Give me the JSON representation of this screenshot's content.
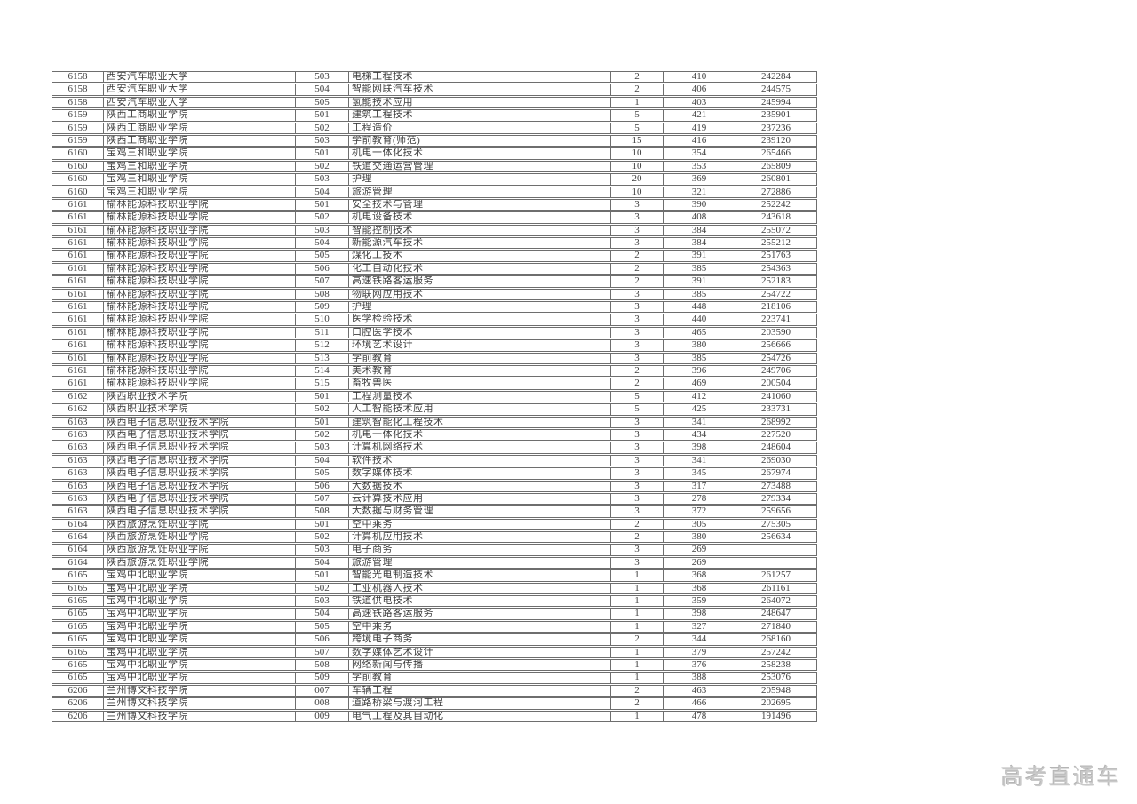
{
  "table": {
    "column_keys": [
      "school_code",
      "school_name",
      "major_code",
      "major_name",
      "plan_count",
      "score",
      "rank"
    ],
    "rows": [
      [
        "6158",
        "西安汽车职业大学",
        "503",
        "电梯工程技术",
        "2",
        "410",
        "242284"
      ],
      [
        "6158",
        "西安汽车职业大学",
        "504",
        "智能网联汽车技术",
        "2",
        "406",
        "244575"
      ],
      [
        "6158",
        "西安汽车职业大学",
        "505",
        "氢能技术应用",
        "1",
        "403",
        "245994"
      ],
      [
        "6159",
        "陕西工商职业学院",
        "501",
        "建筑工程技术",
        "5",
        "421",
        "235901"
      ],
      [
        "6159",
        "陕西工商职业学院",
        "502",
        "工程造价",
        "5",
        "419",
        "237236"
      ],
      [
        "6159",
        "陕西工商职业学院",
        "503",
        "学前教育(师范)",
        "15",
        "416",
        "239120"
      ],
      [
        "6160",
        "宝鸡三和职业学院",
        "501",
        "机电一体化技术",
        "10",
        "354",
        "265466"
      ],
      [
        "6160",
        "宝鸡三和职业学院",
        "502",
        "铁道交通运营管理",
        "10",
        "353",
        "265809"
      ],
      [
        "6160",
        "宝鸡三和职业学院",
        "503",
        "护理",
        "20",
        "369",
        "260801"
      ],
      [
        "6160",
        "宝鸡三和职业学院",
        "504",
        "旅游管理",
        "10",
        "321",
        "272886"
      ],
      [
        "6161",
        "榆林能源科技职业学院",
        "501",
        "安全技术与管理",
        "3",
        "390",
        "252242"
      ],
      [
        "6161",
        "榆林能源科技职业学院",
        "502",
        "机电设备技术",
        "3",
        "408",
        "243618"
      ],
      [
        "6161",
        "榆林能源科技职业学院",
        "503",
        "智能控制技术",
        "3",
        "384",
        "255072"
      ],
      [
        "6161",
        "榆林能源科技职业学院",
        "504",
        "新能源汽车技术",
        "3",
        "384",
        "255212"
      ],
      [
        "6161",
        "榆林能源科技职业学院",
        "505",
        "煤化工技术",
        "2",
        "391",
        "251763"
      ],
      [
        "6161",
        "榆林能源科技职业学院",
        "506",
        "化工自动化技术",
        "2",
        "385",
        "254363"
      ],
      [
        "6161",
        "榆林能源科技职业学院",
        "507",
        "高速铁路客运服务",
        "2",
        "391",
        "252183"
      ],
      [
        "6161",
        "榆林能源科技职业学院",
        "508",
        "物联网应用技术",
        "3",
        "385",
        "254722"
      ],
      [
        "6161",
        "榆林能源科技职业学院",
        "509",
        "护理",
        "3",
        "448",
        "218106"
      ],
      [
        "6161",
        "榆林能源科技职业学院",
        "510",
        "医学检验技术",
        "3",
        "440",
        "223741"
      ],
      [
        "6161",
        "榆林能源科技职业学院",
        "511",
        "口腔医学技术",
        "3",
        "465",
        "203590"
      ],
      [
        "6161",
        "榆林能源科技职业学院",
        "512",
        "环境艺术设计",
        "3",
        "380",
        "256666"
      ],
      [
        "6161",
        "榆林能源科技职业学院",
        "513",
        "学前教育",
        "3",
        "385",
        "254726"
      ],
      [
        "6161",
        "榆林能源科技职业学院",
        "514",
        "美术教育",
        "2",
        "396",
        "249706"
      ],
      [
        "6161",
        "榆林能源科技职业学院",
        "515",
        "畜牧兽医",
        "2",
        "469",
        "200504"
      ],
      [
        "6162",
        "陕西职业技术学院",
        "501",
        "工程测量技术",
        "5",
        "412",
        "241060"
      ],
      [
        "6162",
        "陕西职业技术学院",
        "502",
        "人工智能技术应用",
        "5",
        "425",
        "233731"
      ],
      [
        "6163",
        "陕西电子信息职业技术学院",
        "501",
        "建筑智能化工程技术",
        "3",
        "341",
        "268992"
      ],
      [
        "6163",
        "陕西电子信息职业技术学院",
        "502",
        "机电一体化技术",
        "3",
        "434",
        "227520"
      ],
      [
        "6163",
        "陕西电子信息职业技术学院",
        "503",
        "计算机网络技术",
        "3",
        "398",
        "248604"
      ],
      [
        "6163",
        "陕西电子信息职业技术学院",
        "504",
        "软件技术",
        "3",
        "341",
        "269030"
      ],
      [
        "6163",
        "陕西电子信息职业技术学院",
        "505",
        "数字媒体技术",
        "3",
        "345",
        "267974"
      ],
      [
        "6163",
        "陕西电子信息职业技术学院",
        "506",
        "大数据技术",
        "3",
        "317",
        "273488"
      ],
      [
        "6163",
        "陕西电子信息职业技术学院",
        "507",
        "云计算技术应用",
        "3",
        "278",
        "279334"
      ],
      [
        "6163",
        "陕西电子信息职业技术学院",
        "508",
        "大数据与财务管理",
        "3",
        "372",
        "259656"
      ],
      [
        "6164",
        "陕西旅游烹饪职业学院",
        "501",
        "空中乘务",
        "2",
        "305",
        "275305"
      ],
      [
        "6164",
        "陕西旅游烹饪职业学院",
        "502",
        "计算机应用技术",
        "2",
        "380",
        "256634"
      ],
      [
        "6164",
        "陕西旅游烹饪职业学院",
        "503",
        "电子商务",
        "3",
        "269",
        ""
      ],
      [
        "6164",
        "陕西旅游烹饪职业学院",
        "504",
        "旅游管理",
        "3",
        "269",
        ""
      ],
      [
        "6165",
        "宝鸡中北职业学院",
        "501",
        "智能光电制造技术",
        "1",
        "368",
        "261257"
      ],
      [
        "6165",
        "宝鸡中北职业学院",
        "502",
        "工业机器人技术",
        "1",
        "368",
        "261161"
      ],
      [
        "6165",
        "宝鸡中北职业学院",
        "503",
        "铁道供电技术",
        "1",
        "359",
        "264072"
      ],
      [
        "6165",
        "宝鸡中北职业学院",
        "504",
        "高速铁路客运服务",
        "1",
        "398",
        "248647"
      ],
      [
        "6165",
        "宝鸡中北职业学院",
        "505",
        "空中乘务",
        "1",
        "327",
        "271840"
      ],
      [
        "6165",
        "宝鸡中北职业学院",
        "506",
        "跨境电子商务",
        "2",
        "344",
        "268160"
      ],
      [
        "6165",
        "宝鸡中北职业学院",
        "507",
        "数字媒体艺术设计",
        "1",
        "379",
        "257242"
      ],
      [
        "6165",
        "宝鸡中北职业学院",
        "508",
        "网络新闻与传播",
        "1",
        "376",
        "258238"
      ],
      [
        "6165",
        "宝鸡中北职业学院",
        "509",
        "学前教育",
        "1",
        "388",
        "253076"
      ],
      [
        "6206",
        "兰州博文科技学院",
        "007",
        "车辆工程",
        "2",
        "463",
        "205948"
      ],
      [
        "6206",
        "兰州博文科技学院",
        "008",
        "道路桥梁与渡河工程",
        "2",
        "466",
        "202695"
      ],
      [
        "6206",
        "兰州博文科技学院",
        "009",
        "电气工程及其自动化",
        "1",
        "478",
        "191496"
      ]
    ]
  },
  "watermark": {
    "text": "高考直通车"
  },
  "colors": {
    "border": "#6e6e6e",
    "text": "#3f3f3f",
    "watermark": "#c9c9c9",
    "background": "#ffffff"
  }
}
